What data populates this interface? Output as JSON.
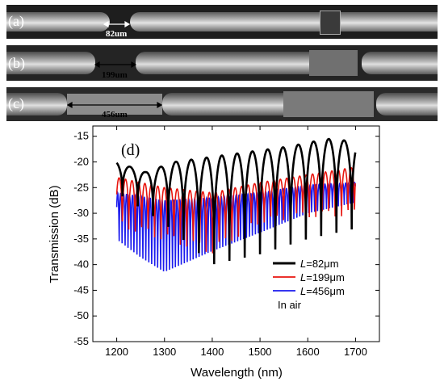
{
  "micrographs": [
    {
      "label": "(a)",
      "measurement": "82um"
    },
    {
      "label": "(b)",
      "measurement": "199um"
    },
    {
      "label": "(c)",
      "measurement": "456um"
    }
  ],
  "chart_data": {
    "type": "line",
    "panel_label": "(d)",
    "xlabel": "Wavelength (nm)",
    "ylabel": "Transmission (dB)",
    "xlim": [
      1150,
      1750
    ],
    "ylim": [
      -55,
      -13
    ],
    "xticks": [
      1200,
      1300,
      1400,
      1500,
      1600,
      1700
    ],
    "yticks": [
      -55,
      -50,
      -45,
      -40,
      -35,
      -30,
      -25,
      -20,
      -15
    ],
    "legend_position": "lower-right",
    "legend_note": "In air",
    "series": [
      {
        "name": "L=82μm",
        "legend_italic": "L",
        "legend_rest": "=82μm",
        "color": "#000000",
        "fsr": 32,
        "phase": 1228,
        "top": [
          [
            1200,
            -20
          ],
          [
            1260,
            -22
          ],
          [
            1320,
            -20
          ],
          [
            1400,
            -19
          ],
          [
            1480,
            -18
          ],
          [
            1560,
            -17
          ],
          [
            1640,
            -15.5
          ],
          [
            1700,
            -16
          ]
        ],
        "bottom": [
          [
            1200,
            -26
          ],
          [
            1300,
            -32
          ],
          [
            1400,
            -40
          ],
          [
            1500,
            -38
          ],
          [
            1600,
            -35
          ],
          [
            1700,
            -33
          ]
        ]
      },
      {
        "name": "L=199μm",
        "legend_italic": "L",
        "legend_rest": "=199μm",
        "color": "#e8150e",
        "fsr": 13.5,
        "phase": 1205,
        "top": [
          [
            1200,
            -23
          ],
          [
            1300,
            -25
          ],
          [
            1400,
            -26
          ],
          [
            1500,
            -24
          ],
          [
            1600,
            -22.5
          ],
          [
            1700,
            -21
          ]
        ],
        "bottom": [
          [
            1200,
            -35
          ],
          [
            1300,
            -38
          ],
          [
            1400,
            -41
          ],
          [
            1500,
            -34
          ],
          [
            1600,
            -33
          ],
          [
            1700,
            -33
          ]
        ]
      },
      {
        "name": "L=456μm",
        "legend_italic": "L",
        "legend_rest": "=456μm",
        "color": "#1a1aee",
        "fsr": 6.2,
        "phase": 1202,
        "top": [
          [
            1200,
            -26
          ],
          [
            1300,
            -27.5
          ],
          [
            1400,
            -27
          ],
          [
            1500,
            -26
          ],
          [
            1600,
            -24.5
          ],
          [
            1700,
            -24
          ]
        ],
        "bottom": [
          [
            1200,
            -40
          ],
          [
            1250,
            -45
          ],
          [
            1300,
            -49
          ],
          [
            1400,
            -43
          ],
          [
            1500,
            -38
          ],
          [
            1600,
            -33
          ],
          [
            1700,
            -30
          ]
        ]
      }
    ]
  }
}
